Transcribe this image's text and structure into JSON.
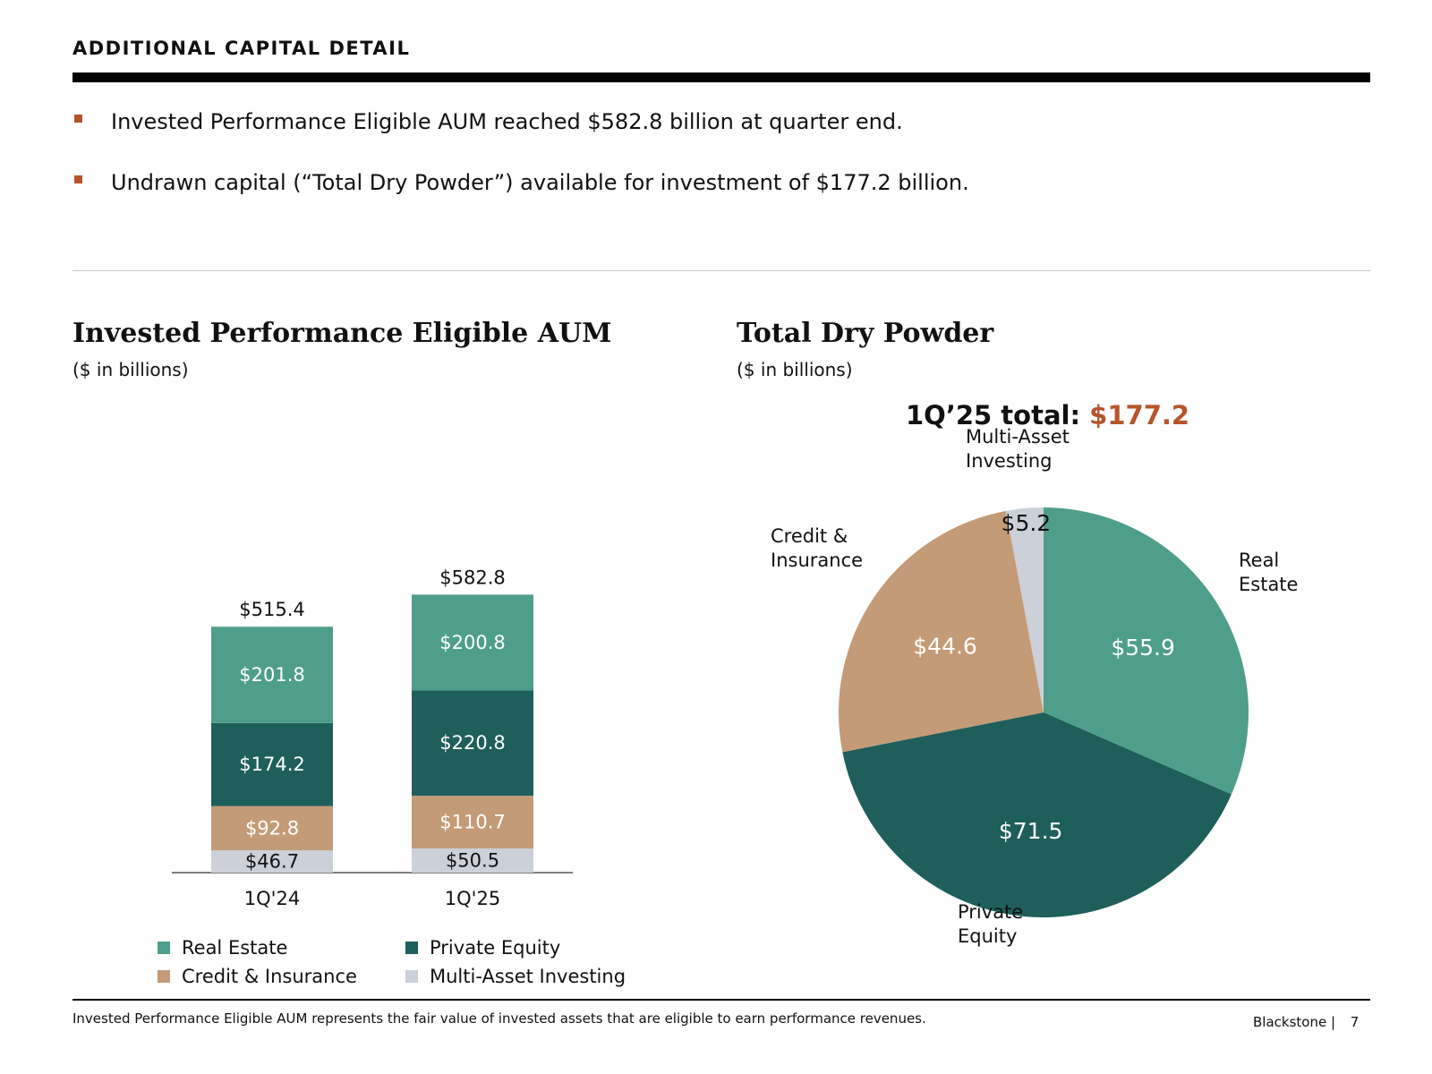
{
  "header": {
    "title": "ADDITIONAL CAPITAL DETAIL"
  },
  "bullets": [
    "Invested Performance Eligible AUM reached $582.8 billion at quarter end.",
    "Undrawn capital (“Total Dry Powder”) available for investment of $177.2 billion."
  ],
  "colors": {
    "real_estate": "#4e9e8b",
    "private_equity": "#1e5f5b",
    "credit_insurance": "#c49b77",
    "multi_asset": "#cbd0d9",
    "bullet_accent": "#b5552a",
    "total_accent": "#b5552a"
  },
  "left_chart": {
    "title": "Invested Performance Eligible AUM",
    "subtitle": "($ in billions)"
  },
  "right_chart": {
    "title": "Total Dry Powder",
    "subtitle": "($ in billions)",
    "total_label": "1Q’25 total:",
    "total_value": "$177.2"
  },
  "legend": [
    {
      "label": "Real Estate",
      "color_key": "real_estate"
    },
    {
      "label": "Private Equity",
      "color_key": "private_equity"
    },
    {
      "label": "Credit & Insurance",
      "color_key": "credit_insurance"
    },
    {
      "label": "Multi-Asset Investing",
      "color_key": "multi_asset"
    }
  ],
  "chart_data": [
    {
      "type": "bar",
      "stacked": true,
      "title": "Invested Performance Eligible AUM",
      "subtitle": "($ in billions)",
      "categories": [
        "1Q'24",
        "1Q'25"
      ],
      "totals": [
        515.4,
        582.8
      ],
      "total_labels": [
        "$515.4",
        "$582.8"
      ],
      "series": [
        {
          "name": "Multi-Asset Investing",
          "color_key": "multi_asset",
          "values": [
            46.7,
            50.5
          ],
          "labels": [
            "$46.7",
            "$50.5"
          ]
        },
        {
          "name": "Credit & Insurance",
          "color_key": "credit_insurance",
          "values": [
            92.8,
            110.7
          ],
          "labels": [
            "$92.8",
            "$110.7"
          ]
        },
        {
          "name": "Private Equity",
          "color_key": "private_equity",
          "values": [
            174.2,
            220.8
          ],
          "labels": [
            "$174.2",
            "$220.8"
          ]
        },
        {
          "name": "Real Estate",
          "color_key": "real_estate",
          "values": [
            201.8,
            200.8
          ],
          "labels": [
            "$201.8",
            "$200.8"
          ]
        }
      ]
    },
    {
      "type": "pie",
      "title": "Total Dry Powder",
      "subtitle": "($ in billions)",
      "total": 177.2,
      "slices": [
        {
          "name": "Real Estate",
          "category_label": "Real\nEstate",
          "value": 55.9,
          "label": "$55.9",
          "color_key": "real_estate"
        },
        {
          "name": "Private Equity",
          "category_label": "Private\nEquity",
          "value": 71.5,
          "label": "$71.5",
          "color_key": "private_equity"
        },
        {
          "name": "Credit & Insurance",
          "category_label": "Credit &\nInsurance",
          "value": 44.6,
          "label": "$44.6",
          "color_key": "credit_insurance"
        },
        {
          "name": "Multi-Asset Investing",
          "category_label": "Multi-Asset\nInvesting",
          "value": 5.2,
          "label": "$5.2",
          "color_key": "multi_asset"
        }
      ]
    }
  ],
  "footer": {
    "note": "Invested Performance Eligible AUM represents the fair value of invested assets that are eligible to earn performance revenues.",
    "brand": "Blackstone |",
    "page_number": "7"
  }
}
